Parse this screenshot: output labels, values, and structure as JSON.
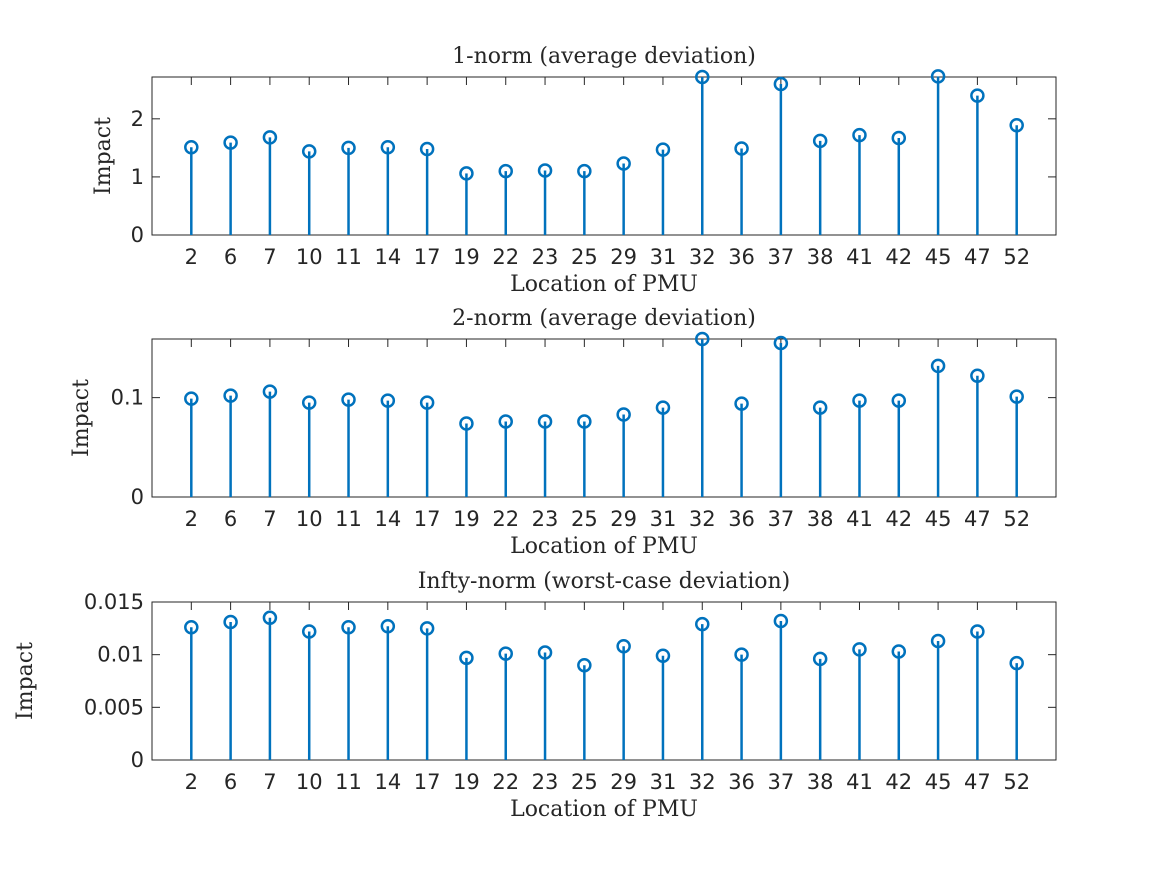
{
  "chart_data": [
    {
      "type": "stem",
      "title": "1-norm (average deviation)",
      "xlabel": "Location of PMU",
      "ylabel": "Impact",
      "categories": [
        "2",
        "6",
        "7",
        "10",
        "11",
        "14",
        "17",
        "19",
        "22",
        "23",
        "25",
        "29",
        "31",
        "32",
        "36",
        "37",
        "38",
        "41",
        "42",
        "45",
        "47",
        "52"
      ],
      "values": [
        1.51,
        1.59,
        1.68,
        1.44,
        1.5,
        1.51,
        1.48,
        1.06,
        1.1,
        1.11,
        1.1,
        1.23,
        1.47,
        2.72,
        1.49,
        2.6,
        1.62,
        1.72,
        1.67,
        2.73,
        2.4,
        1.89
      ],
      "ylim": [
        0,
        2.72
      ],
      "yticks": [
        0,
        1,
        2
      ],
      "ytick_labels": [
        "0",
        "1",
        "2"
      ],
      "grid": false,
      "color": "#0072bd"
    },
    {
      "type": "stem",
      "title": "2-norm (average deviation)",
      "xlabel": "Location of PMU",
      "ylabel": "Impact",
      "categories": [
        "2",
        "6",
        "7",
        "10",
        "11",
        "14",
        "17",
        "19",
        "22",
        "23",
        "25",
        "29",
        "31",
        "32",
        "36",
        "37",
        "38",
        "41",
        "42",
        "45",
        "47",
        "52"
      ],
      "values": [
        0.099,
        0.102,
        0.106,
        0.095,
        0.098,
        0.097,
        0.095,
        0.074,
        0.076,
        0.076,
        0.076,
        0.083,
        0.09,
        0.159,
        0.094,
        0.155,
        0.09,
        0.097,
        0.097,
        0.132,
        0.122,
        0.101
      ],
      "ylim": [
        0,
        0.159
      ],
      "yticks": [
        0,
        0.1
      ],
      "ytick_labels": [
        "0",
        "0.1"
      ],
      "grid": false,
      "color": "#0072bd"
    },
    {
      "type": "stem",
      "title": "Infty-norm (worst-case deviation)",
      "xlabel": "Location of PMU",
      "ylabel": "Impact",
      "categories": [
        "2",
        "6",
        "7",
        "10",
        "11",
        "14",
        "17",
        "19",
        "22",
        "23",
        "25",
        "29",
        "31",
        "32",
        "36",
        "37",
        "38",
        "41",
        "42",
        "45",
        "47",
        "52"
      ],
      "values": [
        0.0126,
        0.0131,
        0.0135,
        0.0122,
        0.0126,
        0.0127,
        0.0125,
        0.0097,
        0.0101,
        0.0102,
        0.009,
        0.0108,
        0.0099,
        0.0129,
        0.01,
        0.0132,
        0.0096,
        0.0105,
        0.0103,
        0.0113,
        0.0122,
        0.0092
      ],
      "ylim": [
        0,
        0.015
      ],
      "yticks": [
        0,
        0.005,
        0.01,
        0.015
      ],
      "ytick_labels": [
        "0",
        "0.005",
        "0.01",
        "0.015"
      ],
      "grid": false,
      "color": "#0072bd"
    }
  ]
}
